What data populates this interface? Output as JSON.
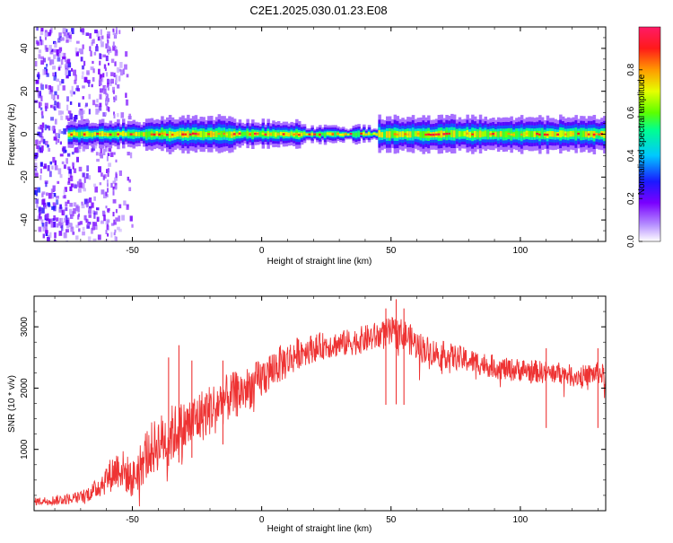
{
  "page_title": "C2E1.2025.030.01.23.E08",
  "chart_data": [
    {
      "type": "heatmap",
      "xlabel": "Height of straight line (km)",
      "ylabel": "Frequency (Hz)",
      "xlim": [
        -88,
        133
      ],
      "ylim": [
        -50,
        50
      ],
      "x_ticks": [
        -50,
        0,
        50,
        100
      ],
      "y_ticks": [
        -40,
        -20,
        0,
        20,
        40
      ],
      "grid": false,
      "colorbar": {
        "label": "Normalized spectral amplitude",
        "range": [
          0,
          1
        ],
        "ticks": [
          0.0,
          0.2,
          0.4,
          0.6,
          0.8
        ],
        "tick_labels": [
          "0.0",
          "0.2",
          "0.4",
          "0.6",
          "0.8"
        ],
        "colormap": [
          "#ffffff",
          "#b48cff",
          "#7a00ff",
          "#1a1aff",
          "#00c8ff",
          "#00ff90",
          "#5cff00",
          "#e6ff00",
          "#ff9900",
          "#ff1a1a",
          "#ff1a66"
        ]
      },
      "features": {
        "noise_region_x": [
          -88,
          -50
        ],
        "noise_column_x": [
          -57,
          -60
        ],
        "band_center_hz": 0,
        "band_segments": [
          {
            "x": [
              -75,
              -45
            ],
            "halfwidth_hz": 2,
            "peak": 0.85
          },
          {
            "x": [
              -45,
              -10
            ],
            "halfwidth_hz": 3,
            "peak": 0.9
          },
          {
            "x": [
              -10,
              15
            ],
            "halfwidth_hz": 2,
            "peak": 0.95
          },
          {
            "x": [
              15,
              45
            ],
            "halfwidth_hz": 1,
            "peak": 1.0
          },
          {
            "x": [
              45,
              133
            ],
            "halfwidth_hz": 3,
            "peak": 0.85
          }
        ]
      }
    },
    {
      "type": "line",
      "xlabel": "Height of straight line (km)",
      "ylabel": "SNR (10 * v/v)",
      "xlim": [
        -88,
        133
      ],
      "ylim": [
        0,
        3500
      ],
      "x_ticks": [
        -50,
        0,
        50,
        100
      ],
      "y_ticks": [
        1000,
        2000,
        3000
      ],
      "grid": false,
      "series": [
        {
          "color": "#ee3333",
          "x": [
            -88,
            -80,
            -75,
            -70,
            -65,
            -60,
            -55,
            -50,
            -45,
            -40,
            -35,
            -30,
            -25,
            -20,
            -15,
            -10,
            -5,
            0,
            5,
            10,
            15,
            20,
            25,
            30,
            35,
            40,
            45,
            50,
            55,
            60,
            65,
            70,
            75,
            80,
            85,
            90,
            95,
            100,
            105,
            110,
            115,
            120,
            125,
            130,
            133
          ],
          "values": [
            150,
            170,
            190,
            220,
            320,
            520,
            720,
            500,
            900,
            1100,
            1250,
            1350,
            1500,
            1650,
            1800,
            1900,
            2000,
            2150,
            2350,
            2450,
            2600,
            2650,
            2700,
            2720,
            2750,
            2800,
            2850,
            2900,
            2880,
            2700,
            2600,
            2550,
            2500,
            2450,
            2400,
            2350,
            2300,
            2300,
            2280,
            2250,
            2250,
            2200,
            2200,
            2250,
            2200
          ],
          "noise_amplitude": [
            60,
            80,
            90,
            100,
            150,
            250,
            350,
            300,
            450,
            450,
            480,
            450,
            450,
            420,
            400,
            380,
            360,
            340,
            320,
            300,
            260,
            230,
            220,
            220,
            220,
            230,
            240,
            260,
            260,
            250,
            230,
            220,
            210,
            200,
            200,
            190,
            190,
            190,
            190,
            180,
            180,
            180,
            180,
            180,
            180
          ]
        }
      ],
      "spikes": [
        {
          "x": -36,
          "y": 2500
        },
        {
          "x": -32,
          "y": 2700
        },
        {
          "x": -27,
          "y": 2450
        },
        {
          "x": -15,
          "y": 2450
        },
        {
          "x": 48,
          "y": 3300
        },
        {
          "x": 52,
          "y": 3450
        },
        {
          "x": 55,
          "y": 3300
        },
        {
          "x": 110,
          "y": 2650
        },
        {
          "x": 130,
          "y": 2650
        }
      ]
    }
  ]
}
